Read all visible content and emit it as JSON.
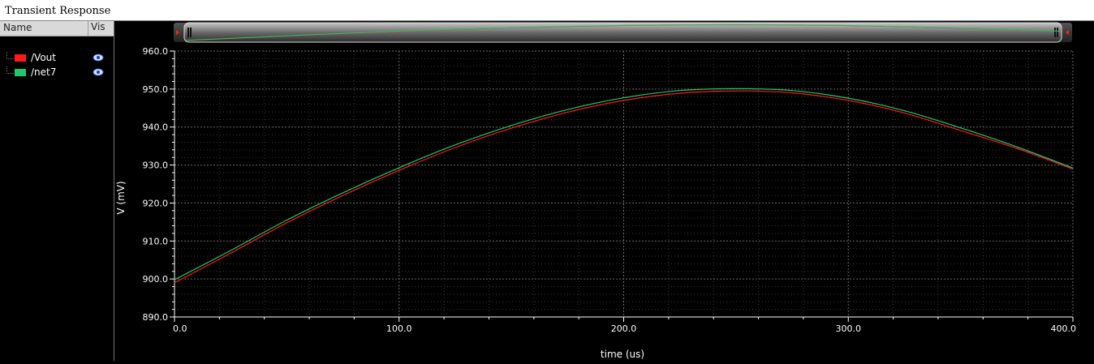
{
  "window": {
    "title": "Transient Response"
  },
  "legend": {
    "columns": {
      "name": "Name",
      "vis": "Vis"
    },
    "items": [
      {
        "label": "/Vout",
        "color": "#ff1a1a"
      },
      {
        "label": "/net7",
        "color": "#1ec86e"
      }
    ]
  },
  "chart_data": {
    "type": "line",
    "title": "Transient Response",
    "xlabel": "time (us)",
    "ylabel": "V (mV)",
    "xlim": [
      0,
      400
    ],
    "ylim": [
      890,
      960
    ],
    "xticks": [
      0,
      100,
      200,
      300,
      400
    ],
    "xtick_labels": [
      "0.0",
      "100.0",
      "200.0",
      "300.0",
      "400.0"
    ],
    "yticks": [
      890,
      900,
      910,
      920,
      930,
      940,
      950,
      960
    ],
    "ytick_labels": [
      "890.0",
      "900.0",
      "910.0",
      "920.0",
      "930.0",
      "940.0",
      "950.0",
      "960.0"
    ],
    "grid": true,
    "series": [
      {
        "name": "/Vout",
        "color": "#ff1a1a",
        "x": [
          0,
          25,
          50,
          75,
          100,
          125,
          150,
          175,
          200,
          225,
          250,
          275,
          300,
          325,
          350,
          375,
          400
        ],
        "y": [
          899.0,
          906.8,
          914.8,
          922.0,
          928.6,
          934.6,
          939.7,
          943.9,
          947.0,
          948.9,
          949.5,
          949.0,
          947.0,
          943.7,
          939.1,
          934.4,
          928.9
        ]
      },
      {
        "name": "/net7",
        "color": "#1ec86e",
        "x": [
          0,
          25,
          50,
          75,
          100,
          125,
          150,
          175,
          200,
          225,
          250,
          275,
          300,
          325,
          350,
          375,
          400
        ],
        "y": [
          899.8,
          907.5,
          915.5,
          922.7,
          929.3,
          935.3,
          940.4,
          944.6,
          947.7,
          949.6,
          950.1,
          949.6,
          947.6,
          944.3,
          939.8,
          934.8,
          929.2
        ]
      }
    ]
  }
}
